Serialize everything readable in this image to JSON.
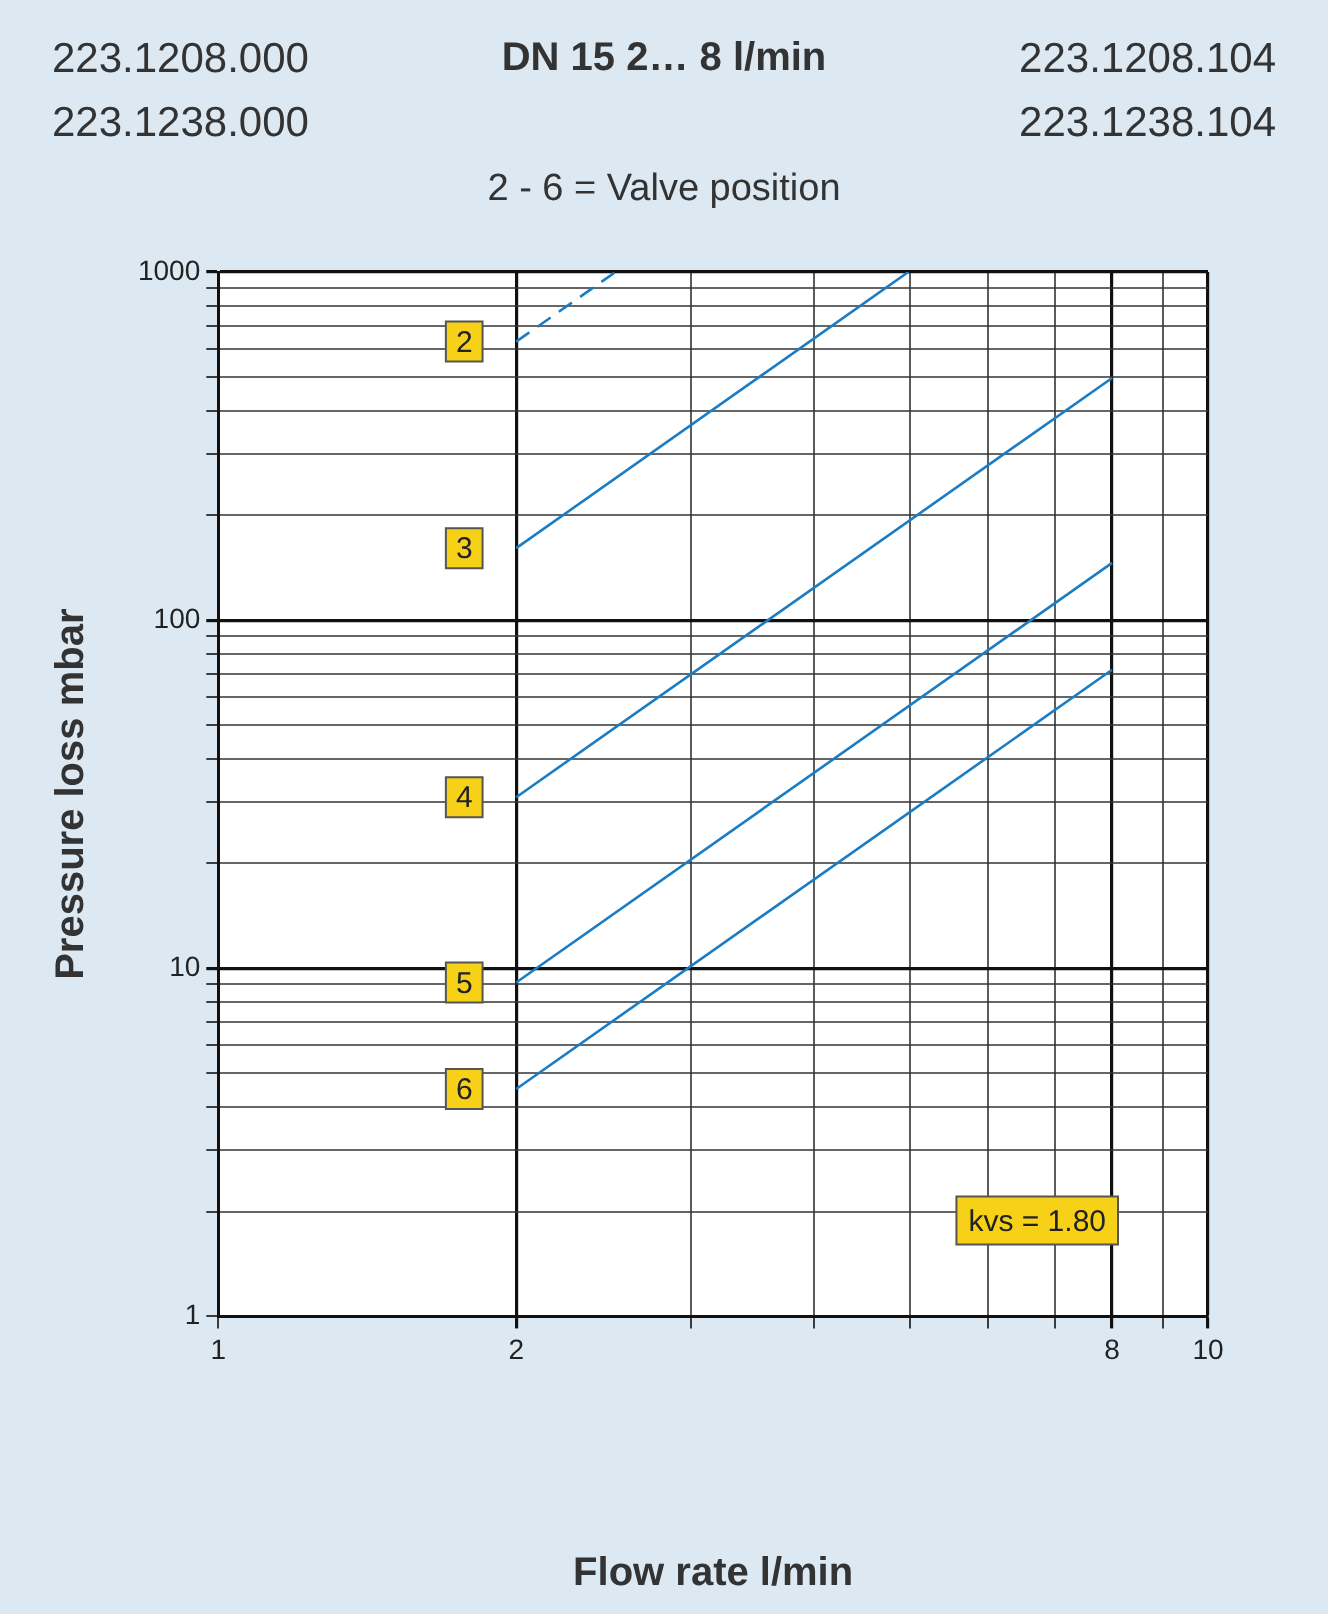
{
  "chart_data": {
    "type": "line",
    "title": "DN 15   2… 8 l/min",
    "subtitle": "2 - 6 = Valve position",
    "xlabel": "Flow rate l/min",
    "ylabel": "Pressure loss mbar",
    "annotations": [
      "223.1208.000",
      "223.1238.000",
      "223.1208.104",
      "223.1238.104",
      "kvs = 1.80"
    ],
    "series": [
      {
        "name": "2",
        "color": "#1a7dc4",
        "x": [
          2,
          2.52
        ],
        "values": [
          631,
          1000
        ],
        "line_style": "dashed"
      },
      {
        "name": "3",
        "color": "#1a7dc4",
        "x": [
          2,
          4.98
        ],
        "values": [
          161,
          1000
        ]
      },
      {
        "name": "4",
        "color": "#1a7dc4",
        "x": [
          2,
          8
        ],
        "values": [
          31,
          496
        ]
      },
      {
        "name": "5",
        "color": "#1a7dc4",
        "x": [
          2,
          8
        ],
        "values": [
          9.1,
          146
        ]
      },
      {
        "name": "6",
        "color": "#1a7dc4",
        "x": [
          2,
          8
        ],
        "values": [
          4.5,
          72
        ]
      }
    ],
    "log": "xy",
    "xlim": [
      1,
      10
    ],
    "ylim": [
      1,
      1000
    ],
    "xticks": [
      1,
      2,
      {
        "value": 3,
        "label": null
      },
      {
        "value": 4,
        "label": null
      },
      {
        "value": 5,
        "label": null
      },
      {
        "value": 6,
        "label": null
      },
      {
        "value": 7,
        "label": null
      },
      8,
      {
        "value": 9,
        "label": null
      },
      10
    ],
    "yticks": [
      1,
      {
        "value": 2,
        "label": null
      },
      {
        "value": 3,
        "label": null
      },
      {
        "value": 4,
        "label": null
      },
      {
        "value": 5,
        "label": null
      },
      {
        "value": 6,
        "label": null
      },
      {
        "value": 7,
        "label": null
      },
      {
        "value": 8,
        "label": null
      },
      {
        "value": 9,
        "label": null
      },
      10,
      {
        "value": 20,
        "label": null
      },
      {
        "value": 30,
        "label": null
      },
      {
        "value": 40,
        "label": null
      },
      {
        "value": 50,
        "label": null
      },
      {
        "value": 60,
        "label": null
      },
      {
        "value": 70,
        "label": null
      },
      {
        "value": 80,
        "label": null
      },
      {
        "value": 90,
        "label": null
      },
      100,
      {
        "value": 200,
        "label": null
      },
      {
        "value": 300,
        "label": null
      },
      {
        "value": 400,
        "label": null
      },
      {
        "value": 500,
        "label": null
      },
      {
        "value": 600,
        "label": null
      },
      {
        "value": 700,
        "label": null
      },
      {
        "value": 800,
        "label": null
      },
      {
        "value": 900,
        "label": null
      },
      1000
    ],
    "grid": true,
    "legend": false,
    "marker": "none"
  }
}
